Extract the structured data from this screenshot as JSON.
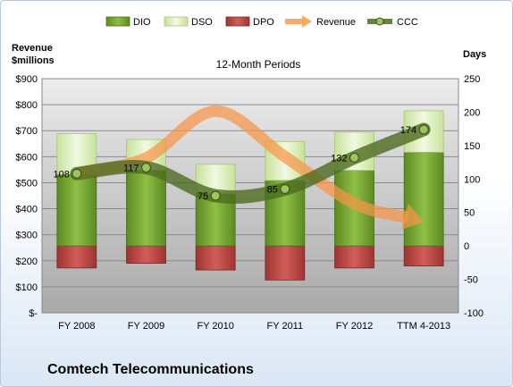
{
  "chart_data": {
    "type": "bar",
    "title": "12-Month Periods",
    "company": "Comtech Telecommunications",
    "y_left_label_line1": "Revenue",
    "y_left_label_line2": "$millions",
    "y_right_label": "Days",
    "categories": [
      "FY 2008",
      "FY 2009",
      "FY 2010",
      "FY 2011",
      "FY 2012",
      "TTM 4-2013"
    ],
    "y_left_ticks": [
      "$-",
      "$100",
      "$200",
      "$300",
      "$400",
      "$500",
      "$600",
      "$700",
      "$800",
      "$900"
    ],
    "y_right_ticks": [
      "-100",
      "-50",
      "0",
      "50",
      "100",
      "150",
      "200",
      "250"
    ],
    "y_left_range": [
      0,
      900
    ],
    "y_right_range": [
      -100,
      250
    ],
    "legend_position": "top",
    "grid": true,
    "series": [
      {
        "name": "DIO",
        "axis": "right",
        "color": "#6f9a2f",
        "values": [
          107,
          113,
          78,
          98,
          113,
          140
        ]
      },
      {
        "name": "DSO",
        "axis": "right",
        "color": "#dff0c0",
        "values": [
          61,
          46,
          44,
          58,
          57,
          62
        ]
      },
      {
        "name": "DPO",
        "axis": "right",
        "color": "#c0504d",
        "values": [
          -33,
          -26,
          -36,
          -51,
          -33,
          -30
        ]
      },
      {
        "name": "Revenue",
        "axis": "left",
        "color": "#f79646",
        "values": [
          535,
          595,
          775,
          600,
          420,
          350
        ]
      },
      {
        "name": "CCC",
        "axis": "right",
        "color": "#4e6b1f",
        "values": [
          108,
          117,
          75,
          85,
          132,
          174
        ]
      }
    ],
    "ccc_labels": [
      "108",
      "117",
      "75",
      "85",
      "132",
      "174"
    ]
  }
}
